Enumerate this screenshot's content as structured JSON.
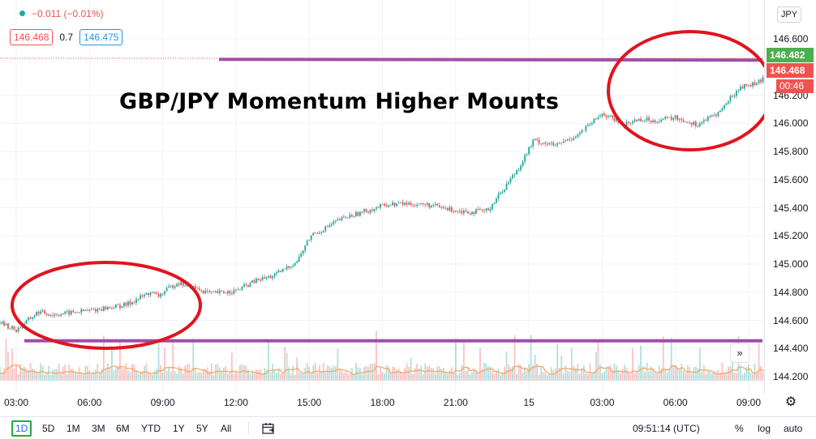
{
  "header": {
    "change": "−0.011 (−0.01%)",
    "bid": "146.468",
    "spread": "0.7",
    "ask": "146.475"
  },
  "annotation": "GBP/JPY Momentum Higher Mounts",
  "price_axis": {
    "currency_button": "JPY",
    "current_price": "146.482",
    "last_price": "146.468",
    "countdown": "00:46",
    "ticks": [
      "146.600",
      "146.200",
      "146.000",
      "145.800",
      "145.600",
      "145.400",
      "145.200",
      "145.000",
      "144.800",
      "144.600",
      "144.400",
      "144.200"
    ]
  },
  "time_axis": {
    "ticks": [
      "03:00",
      "06:00",
      "09:00",
      "12:00",
      "15:00",
      "18:00",
      "21:00",
      "15",
      "03:00",
      "06:00",
      "09:00"
    ]
  },
  "toolbar": {
    "ranges": [
      "1D",
      "5D",
      "1M",
      "3M",
      "6M",
      "YTD",
      "1Y",
      "5Y",
      "All"
    ],
    "active_range": "1D",
    "clock": "09:51:14 (UTC)",
    "percent": "%",
    "log": "log",
    "auto": "auto",
    "scroll_label": "»",
    "settings_label": "⚙"
  },
  "colors": {
    "up": "#26a69a",
    "down": "#ef5350",
    "marker_line": "#9c4fa8",
    "circle": "#e0141e",
    "current_price_badge": "#4caf50",
    "last_price_badge": "#ef5350"
  },
  "chart_data": {
    "type": "candlestick",
    "title": "",
    "xlabel": "",
    "ylabel": "",
    "ylim": [
      144.1,
      146.72
    ],
    "x_ticks": [
      "03:00",
      "06:00",
      "09:00",
      "12:00",
      "15:00",
      "18:00",
      "21:00",
      "15",
      "03:00",
      "06:00",
      "09:00"
    ],
    "close_path": {
      "x_hours": [
        2.0,
        3.0,
        3.9,
        4.5,
        6.0,
        7.5,
        8.5,
        8.8,
        9.6,
        10.3,
        11.0,
        12.0,
        12.8,
        13.6,
        14.5,
        15.1,
        15.4,
        16.3,
        17.2,
        18.1,
        18.8,
        19.9,
        20.7,
        21.6,
        22.3,
        22.9,
        23.6,
        24.2,
        25.1,
        26.0,
        26.5,
        27.0,
        27.9,
        28.5,
        29.1,
        30.0,
        30.9,
        31.8,
        32.3,
        32.7,
        33.2,
        33.5,
        34.0
      ],
      "close": [
        144.61,
        144.53,
        144.66,
        144.64,
        144.67,
        144.71,
        144.8,
        144.77,
        144.87,
        144.83,
        144.79,
        144.81,
        144.88,
        144.92,
        145.02,
        145.21,
        145.23,
        145.32,
        145.37,
        145.42,
        145.43,
        145.42,
        145.39,
        145.37,
        145.38,
        145.52,
        145.69,
        145.88,
        145.84,
        145.92,
        145.99,
        146.07,
        145.99,
        146.03,
        146.02,
        146.04,
        145.99,
        146.08,
        146.19,
        146.26,
        146.28,
        146.3,
        146.39
      ]
    },
    "volume_y_label": "",
    "series": [
      {
        "name": "",
        "marker_line_level_upper": 146.455
      },
      {
        "name": "",
        "marker_line_level_lower": 144.455
      }
    ]
  }
}
